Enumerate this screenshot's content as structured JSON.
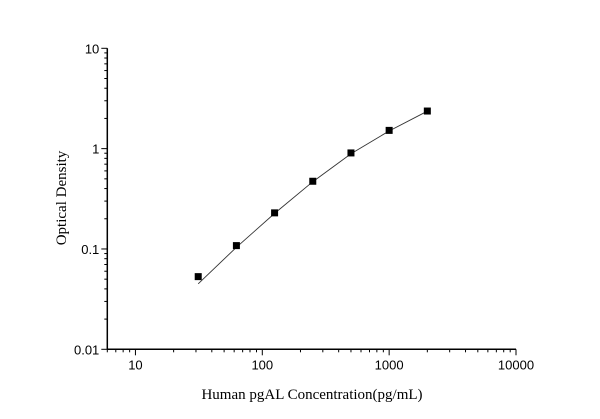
{
  "chart_data": {
    "type": "scatter",
    "title": "",
    "xlabel": "Human pgAL Concentration(pg/mL)",
    "ylabel": "Optical Density",
    "x_scale": "log",
    "y_scale": "log",
    "xlim": [
      6,
      10000
    ],
    "ylim": [
      0.01,
      10
    ],
    "x_ticks": [
      "10",
      "100",
      "1000",
      "10000"
    ],
    "y_ticks": [
      "0.01",
      "0.1",
      "1",
      "10"
    ],
    "grid": false,
    "legend": "none",
    "series": [
      {
        "marker": "square",
        "x": [
          31.25,
          62.5,
          125,
          250,
          500,
          1000,
          2000
        ],
        "y": [
          0.053,
          0.108,
          0.229,
          0.473,
          0.906,
          1.52,
          2.37
        ]
      },
      {
        "line": "fit",
        "x": [
          31.25,
          62.5,
          125,
          250,
          500,
          1000,
          2000
        ],
        "y": [
          0.045,
          0.104,
          0.226,
          0.468,
          0.89,
          1.5,
          2.36
        ]
      }
    ],
    "colors": {
      "marker": "#000000",
      "line": "#333333",
      "axis": "#000000"
    }
  }
}
